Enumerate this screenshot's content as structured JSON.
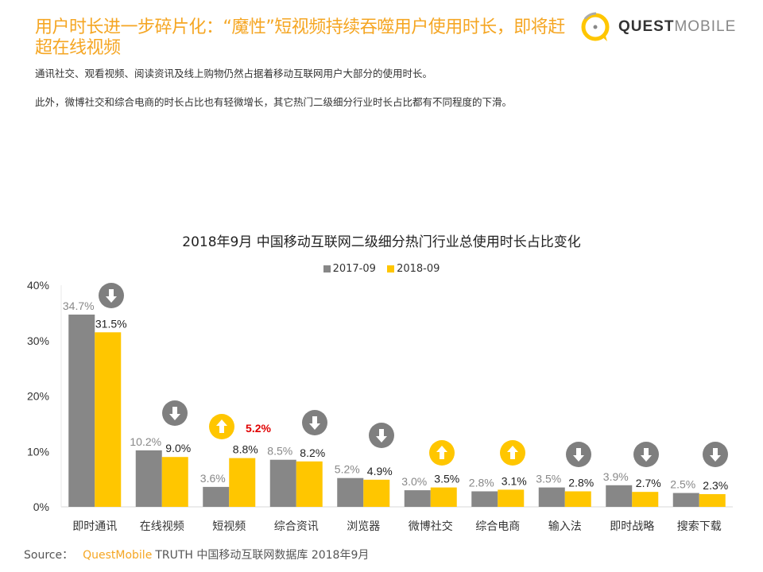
{
  "header": {
    "title": "用户时长进一步碎片化：“魔性”短视频持续吞噬用户使用时长，即将赶超在线视频",
    "desc1": "通讯社交、观看视频、阅读资讯及线上购物仍然占据着移动互联网用户大部分的使用时长。",
    "desc2": "此外，微博社交和综合电商的时长占比也有轻微增长，其它热门二级细分行业时长占比都有不同程度的下滑。"
  },
  "logo": {
    "bold": "QUEST",
    "light": "MOBILE"
  },
  "source": {
    "label": "Source：",
    "brand": "QuestMobile",
    "text": "TRUTH 中国移动互联网数据库 2018年9月"
  },
  "colors": {
    "s2017": "#878787",
    "s2018": "#ffc600",
    "up": "#ffc600",
    "down": "#7f7f7f",
    "highlight": "#e00000"
  },
  "chart_data": {
    "type": "bar",
    "title": "2018年9月 中国移动互联网二级细分热门行业总使用时长占比变化",
    "ylim": [
      0,
      40
    ],
    "yticks": [
      "0%",
      "10%",
      "20%",
      "30%",
      "40%"
    ],
    "legend_position": "top",
    "categories": [
      "即时通讯",
      "在线视频",
      "短视频",
      "综合资讯",
      "浏览器",
      "微博社交",
      "综合电商",
      "输入法",
      "即时战略",
      "搜索下载"
    ],
    "series": [
      {
        "name": "2017-09",
        "values": [
          34.7,
          10.2,
          3.6,
          8.5,
          5.2,
          3.0,
          2.8,
          3.5,
          3.9,
          2.5
        ],
        "labels": [
          "34.7%",
          "10.2%",
          "3.6%",
          "8.5%",
          "5.2%",
          "3.0%",
          "2.8%",
          "3.5%",
          "3.9%",
          "2.5%"
        ]
      },
      {
        "name": "2018-09",
        "values": [
          31.5,
          9.0,
          8.8,
          8.2,
          4.9,
          3.5,
          3.1,
          2.8,
          2.7,
          2.3
        ],
        "labels": [
          "31.5%",
          "9.0%",
          "8.8%",
          "8.2%",
          "4.9%",
          "3.5%",
          "3.1%",
          "2.8%",
          "2.7%",
          "2.3%"
        ]
      }
    ],
    "trend": [
      "down",
      "down",
      "up",
      "down",
      "down",
      "up",
      "up",
      "down",
      "down",
      "down"
    ],
    "annotation": "5.2%"
  }
}
